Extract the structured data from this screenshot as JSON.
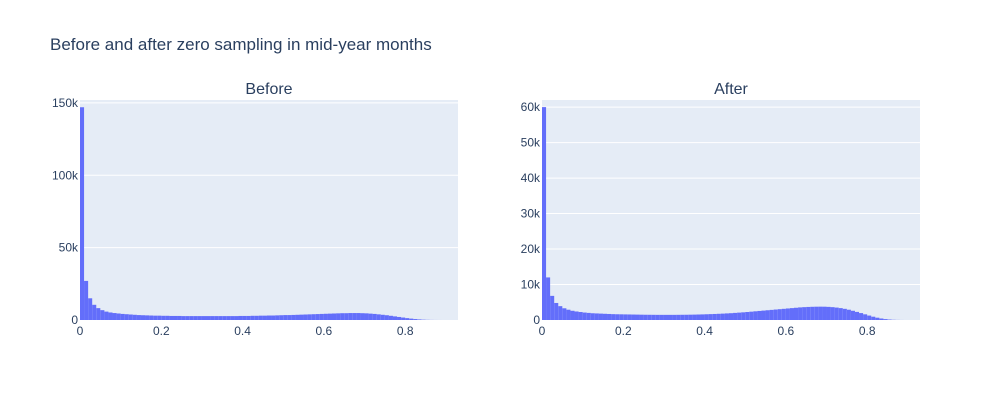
{
  "title": "Before and after zero sampling in mid-year months",
  "colors": {
    "bar": "#636efa",
    "plot_bg": "#e5ecf6",
    "grid": "#ffffff",
    "text": "#2a3f5f"
  },
  "chart_data": [
    {
      "type": "bar",
      "title": "Before",
      "bin_width": 0.01,
      "xlim": [
        0,
        0.93
      ],
      "ylim": [
        0,
        152000
      ],
      "x_ticks": [
        0,
        0.2,
        0.4,
        0.6,
        0.8
      ],
      "x_tick_labels": [
        "0",
        "0.2",
        "0.4",
        "0.6",
        "0.8"
      ],
      "y_ticks": [
        0,
        50000,
        100000,
        150000
      ],
      "y_tick_labels": [
        "0",
        "50k",
        "100k",
        "150k"
      ],
      "values": [
        147000,
        27000,
        15000,
        10500,
        8200,
        6800,
        5800,
        5200,
        4800,
        4500,
        4200,
        4000,
        3800,
        3600,
        3400,
        3300,
        3200,
        3100,
        3000,
        3000,
        2900,
        2900,
        2800,
        2800,
        2800,
        2700,
        2700,
        2700,
        2700,
        2700,
        2700,
        2700,
        2700,
        2700,
        2700,
        2700,
        2700,
        2700,
        2700,
        2800,
        2800,
        2800,
        2900,
        2900,
        3000,
        3000,
        3100,
        3100,
        3200,
        3300,
        3400,
        3400,
        3500,
        3600,
        3700,
        3800,
        3900,
        4000,
        4100,
        4200,
        4300,
        4400,
        4500,
        4600,
        4700,
        4700,
        4800,
        4800,
        4800,
        4700,
        4600,
        4400,
        4200,
        3900,
        3600,
        3300,
        2900,
        2500,
        2100,
        1700,
        1300,
        950,
        650,
        400,
        220,
        110,
        50,
        20,
        8
      ]
    },
    {
      "type": "bar",
      "title": "After",
      "bin_width": 0.01,
      "xlim": [
        0,
        0.93
      ],
      "ylim": [
        0,
        62000
      ],
      "x_ticks": [
        0,
        0.2,
        0.4,
        0.6,
        0.8
      ],
      "x_tick_labels": [
        "0",
        "0.2",
        "0.4",
        "0.6",
        "0.8"
      ],
      "y_ticks": [
        0,
        10000,
        20000,
        30000,
        40000,
        50000,
        60000
      ],
      "y_tick_labels": [
        "0",
        "10k",
        "20k",
        "30k",
        "40k",
        "50k",
        "60k"
      ],
      "values": [
        60000,
        12000,
        6800,
        4800,
        3900,
        3300,
        2900,
        2600,
        2400,
        2250,
        2100,
        2000,
        1900,
        1850,
        1800,
        1750,
        1700,
        1650,
        1620,
        1600,
        1580,
        1560,
        1540,
        1520,
        1500,
        1480,
        1470,
        1460,
        1450,
        1450,
        1450,
        1450,
        1450,
        1460,
        1470,
        1480,
        1500,
        1520,
        1550,
        1580,
        1620,
        1660,
        1700,
        1750,
        1800,
        1860,
        1920,
        2000,
        2080,
        2160,
        2250,
        2350,
        2450,
        2550,
        2650,
        2750,
        2850,
        2950,
        3050,
        3150,
        3250,
        3350,
        3450,
        3550,
        3620,
        3680,
        3720,
        3750,
        3760,
        3750,
        3700,
        3620,
        3500,
        3350,
        3150,
        2900,
        2600,
        2280,
        1950,
        1600,
        1250,
        930,
        650,
        420,
        250,
        130,
        60,
        25,
        8
      ]
    }
  ]
}
